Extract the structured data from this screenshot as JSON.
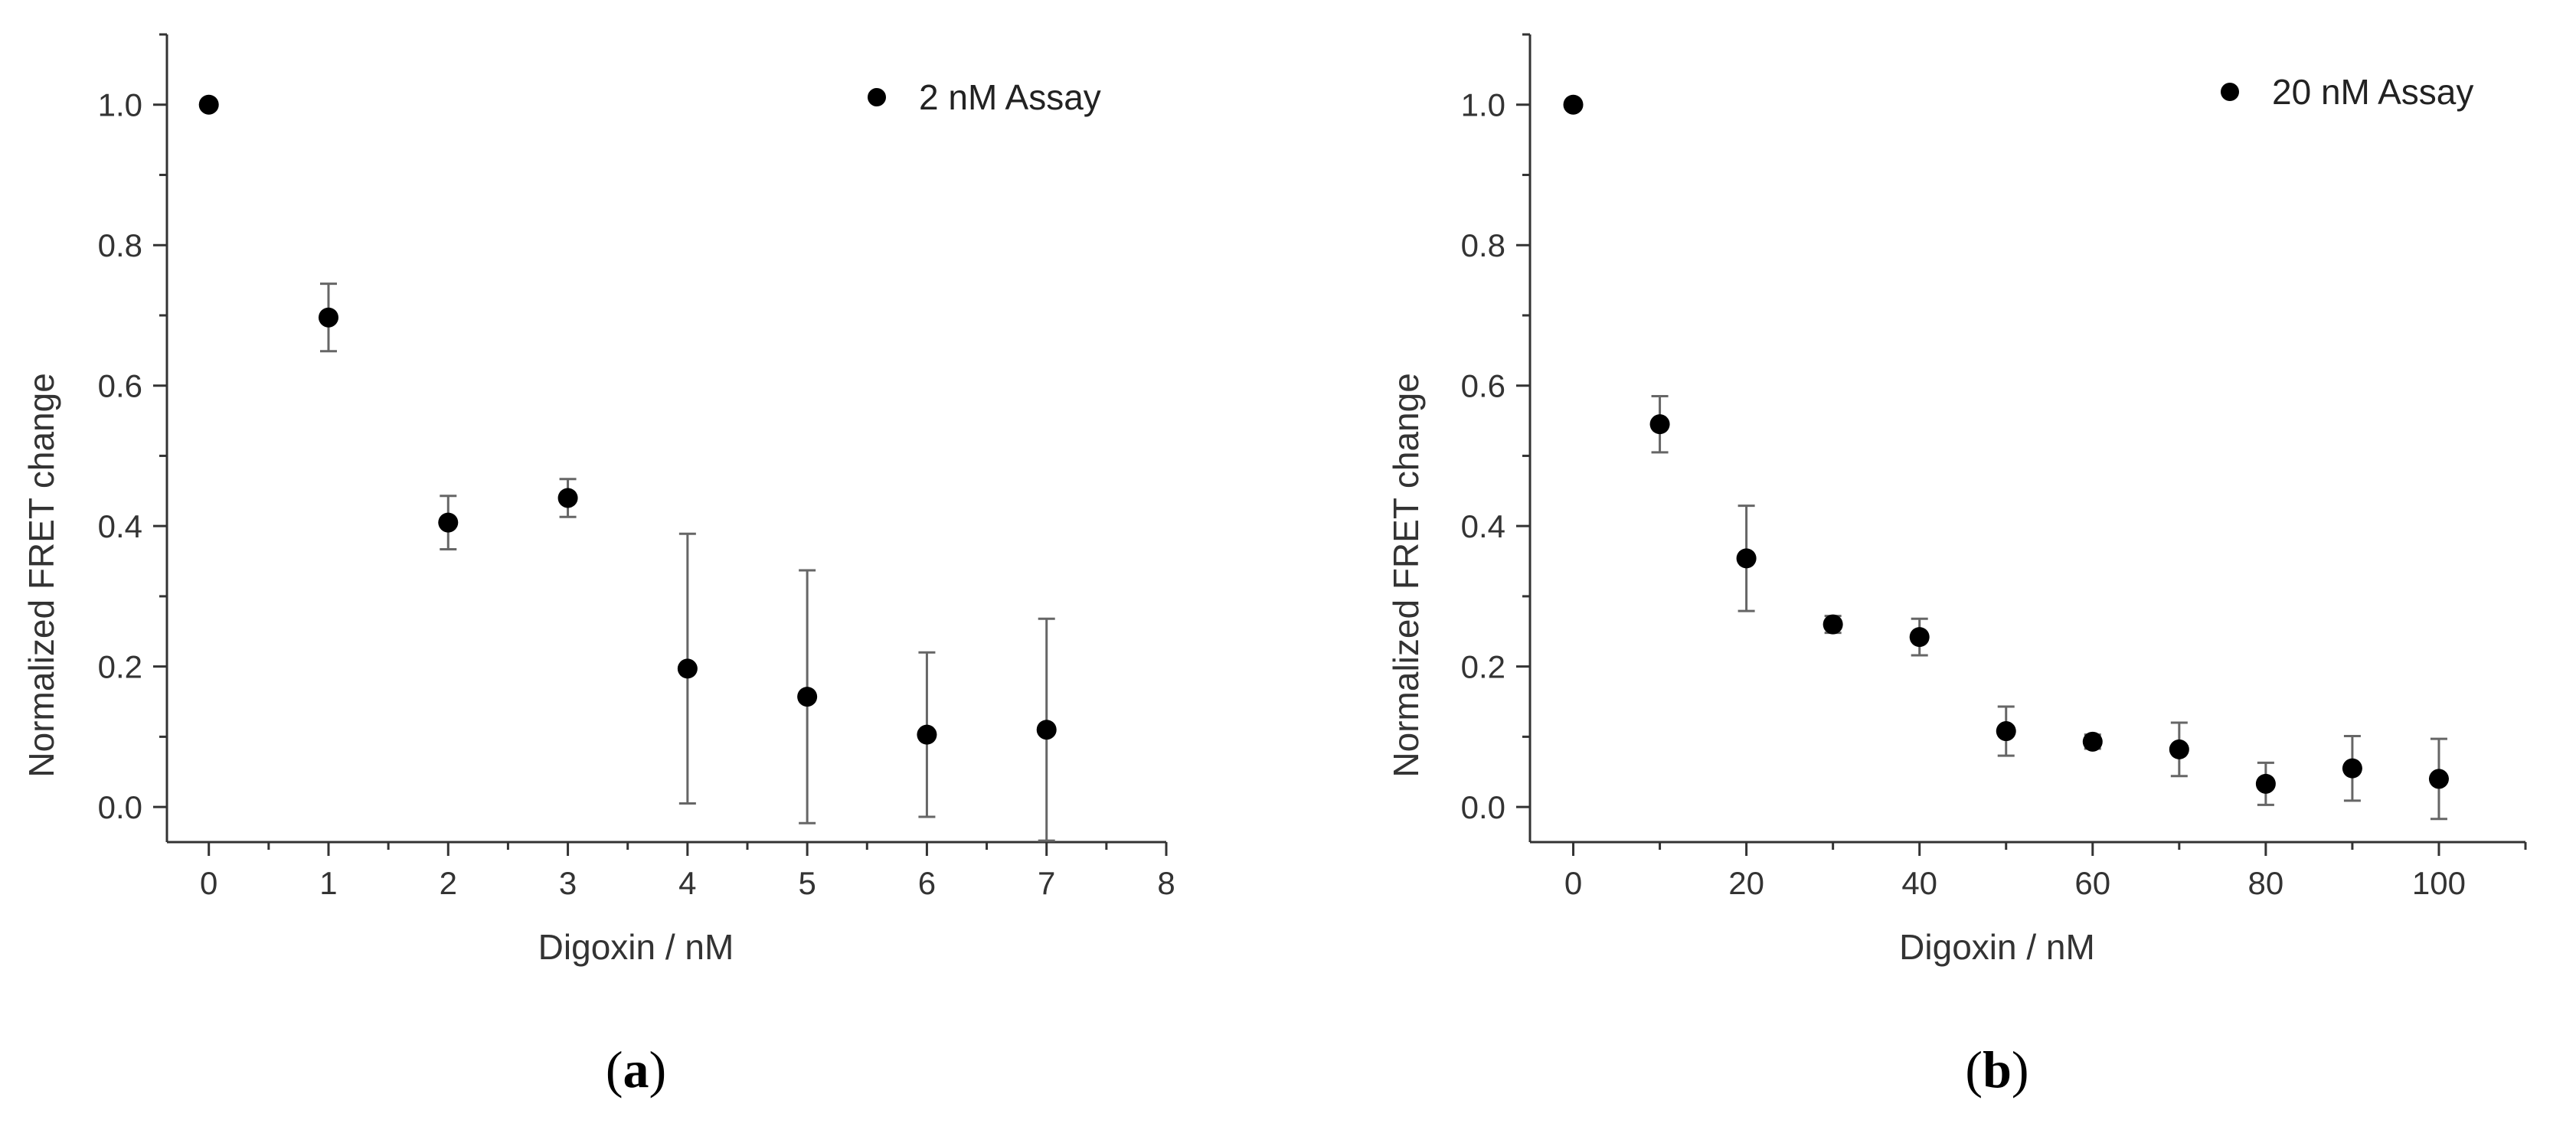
{
  "chart_data": [
    {
      "type": "scatter",
      "panel_label": {
        "open": "(",
        "letter": "a",
        "close": ")"
      },
      "xlabel": "Digoxin / nM",
      "ylabel": "Normalized FRET change",
      "xlim": [
        -0.35,
        8
      ],
      "ylim": [
        -0.05,
        1.1
      ],
      "xticks": [
        0,
        1,
        2,
        3,
        4,
        5,
        6,
        7,
        8
      ],
      "xtick_labels": [
        "0",
        "1",
        "2",
        "3",
        "4",
        "5",
        "6",
        "7",
        "8"
      ],
      "yticks": [
        0.0,
        0.2,
        0.4,
        0.6,
        0.8,
        1.0
      ],
      "ytick_labels": [
        "0.0",
        "0.2",
        "0.4",
        "0.6",
        "0.8",
        "1.0"
      ],
      "legend": {
        "position": "top-right",
        "entries": [
          "2 nM Assay"
        ]
      },
      "series": [
        {
          "name": "2 nM Assay",
          "x": [
            0,
            1,
            2,
            3,
            4,
            5,
            6,
            7
          ],
          "y": [
            1.0,
            0.697,
            0.405,
            0.44,
            0.197,
            0.157,
            0.103,
            0.11
          ],
          "error": [
            0,
            0.048,
            0.038,
            0.027,
            0.192,
            0.18,
            0.117,
            0.158
          ]
        }
      ]
    },
    {
      "type": "scatter",
      "panel_label": {
        "open": "(",
        "letter": "b",
        "close": ")"
      },
      "xlabel": "Digoxin / nM",
      "ylabel": "Normalized FRET change",
      "xlim": [
        -5,
        110
      ],
      "ylim": [
        -0.05,
        1.1
      ],
      "xticks": [
        0,
        20,
        40,
        60,
        80,
        100
      ],
      "xtick_labels": [
        "0",
        "20",
        "40",
        "60",
        "80",
        "100"
      ],
      "yticks": [
        0.0,
        0.2,
        0.4,
        0.6,
        0.8,
        1.0
      ],
      "ytick_labels": [
        "0.0",
        "0.2",
        "0.4",
        "0.6",
        "0.8",
        "1.0"
      ],
      "legend": {
        "position": "top-right",
        "entries": [
          "20 nM Assay"
        ]
      },
      "series": [
        {
          "name": "20 nM Assay",
          "x": [
            0,
            10,
            20,
            30,
            40,
            50,
            60,
            70,
            80,
            90,
            100
          ],
          "y": [
            1.0,
            0.545,
            0.354,
            0.26,
            0.242,
            0.108,
            0.093,
            0.082,
            0.033,
            0.055,
            0.04
          ],
          "error": [
            0,
            0.04,
            0.075,
            0.012,
            0.026,
            0.035,
            0.01,
            0.038,
            0.03,
            0.046,
            0.057
          ]
        }
      ]
    }
  ]
}
